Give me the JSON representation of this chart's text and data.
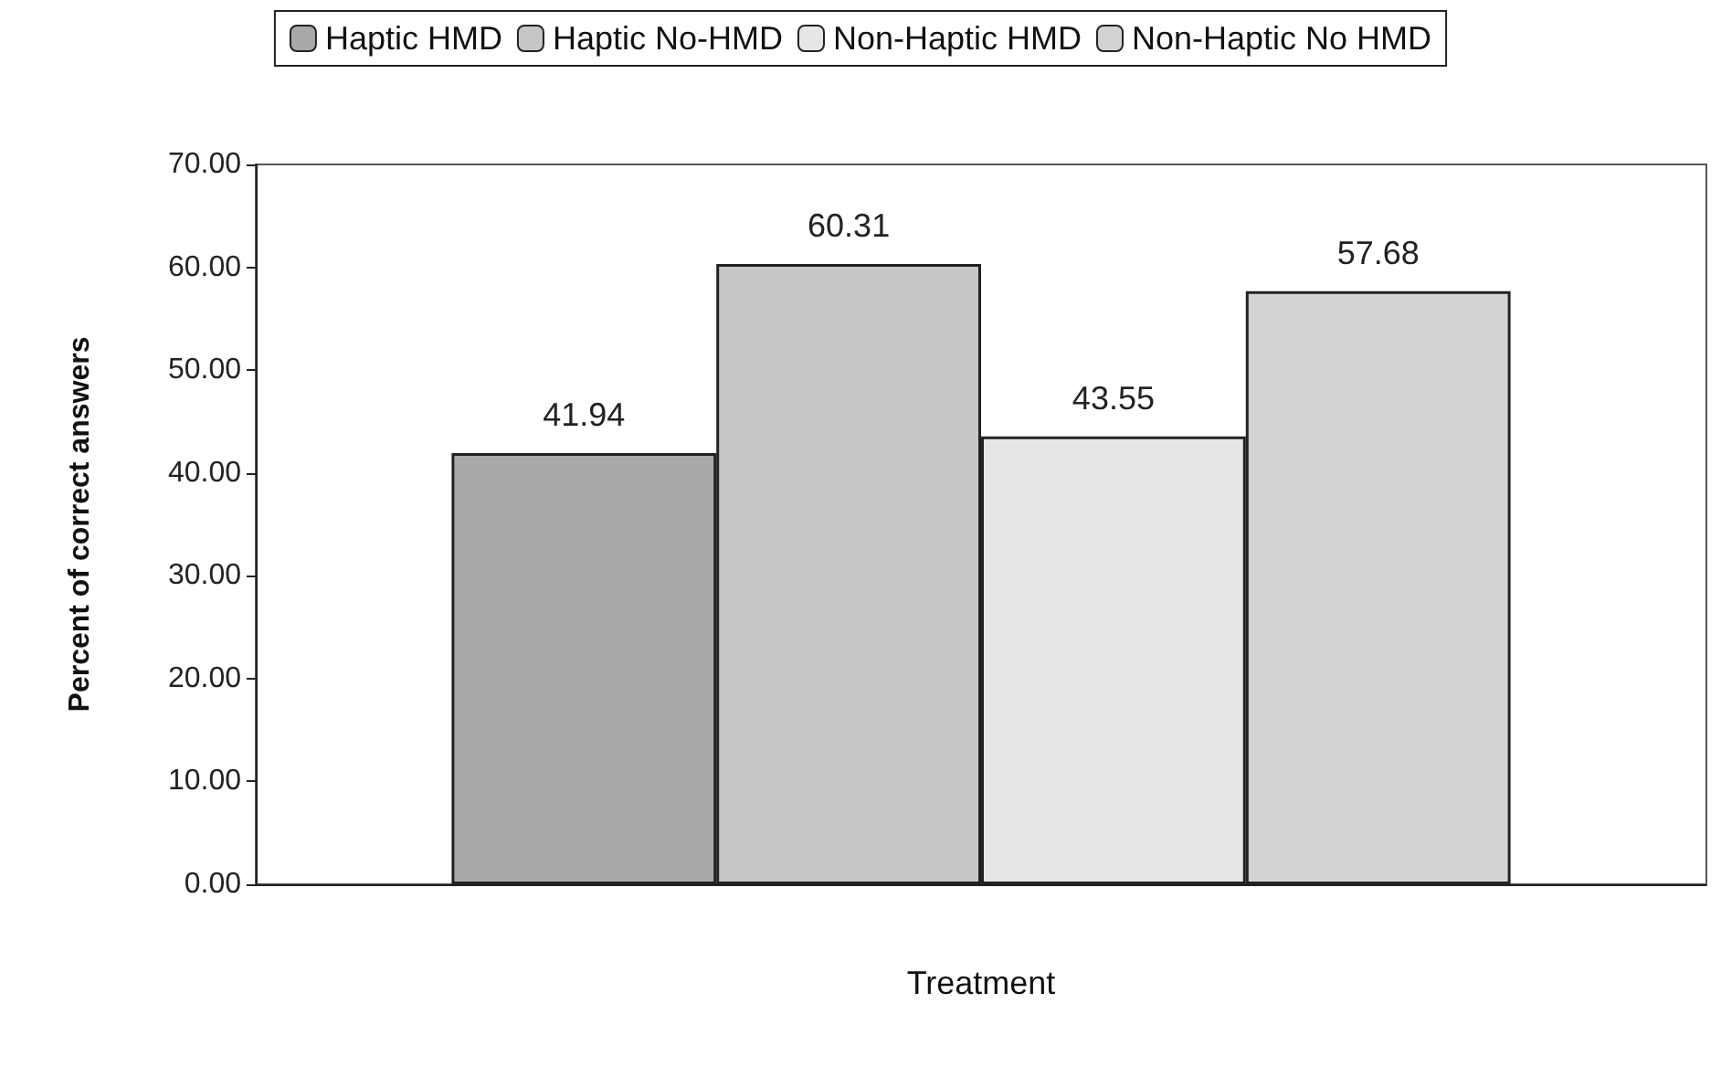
{
  "chart_data": {
    "type": "bar",
    "xlabel": "Treatment",
    "ylabel": "Percent of correct answers",
    "categories": [
      null
    ],
    "series": [
      {
        "name": "Haptic HMD",
        "color": "#a9a9a9",
        "values": [
          41.94
        ]
      },
      {
        "name": "Haptic No-HMD",
        "color": "#c6c6c6",
        "values": [
          60.31
        ]
      },
      {
        "name": "Non-Haptic HMD",
        "color": "#e6e6e6",
        "values": [
          43.55
        ]
      },
      {
        "name": "Non-Haptic No HMD",
        "color": "#d3d3d3",
        "values": [
          57.68
        ]
      }
    ],
    "ylim": [
      0,
      70
    ],
    "yticks": [
      {
        "value": 0,
        "label": "0.00"
      },
      {
        "value": 10,
        "label": "10.00"
      },
      {
        "value": 20,
        "label": "20.00"
      },
      {
        "value": 30,
        "label": "30.00"
      },
      {
        "value": 40,
        "label": "40.00"
      },
      {
        "value": 50,
        "label": "50.00"
      },
      {
        "value": 60,
        "label": "60.00"
      },
      {
        "value": 70,
        "label": "70.00"
      }
    ],
    "grid": false,
    "legend": "top",
    "data_labels": true
  }
}
